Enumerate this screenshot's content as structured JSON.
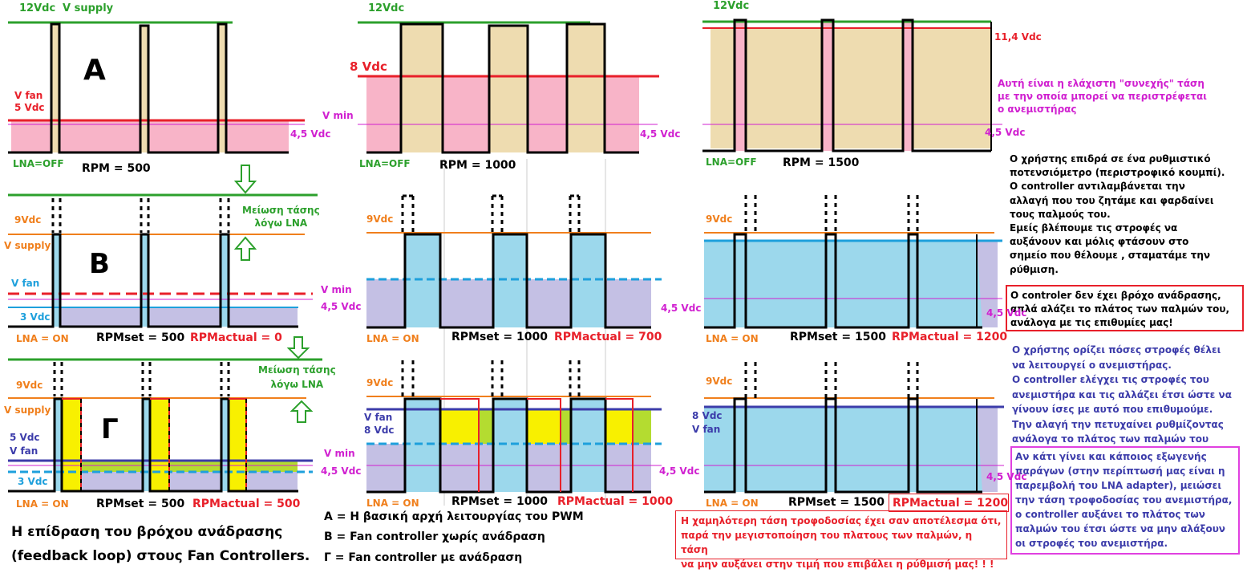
{
  "labels": {
    "v12_a": "12Vdc",
    "vsupply_a": "V supply",
    "v12_b": "12Vdc",
    "v12_c": "12Vdc",
    "vfan_a": "V fan",
    "v5_a": "5 Vdc",
    "v8_b": "8 Vdc",
    "v114_c": "11,4 Vdc",
    "vmin_a": "V min",
    "v45_a": "4,5 Vdc",
    "v45_b": "4,5 Vdc",
    "v45_c": "4,5 Vdc",
    "lna_off_a": "LNA=OFF",
    "lna_off_b": "LNA=OFF",
    "lna_off_c": "LNA=OFF",
    "rpm_500": "RPM = 500",
    "rpm_1000": "RPM = 1000",
    "rpm_1500": "RPM = 1500",
    "letter_a": "A",
    "letter_b": "B",
    "letter_g": "Γ",
    "reduce1": "Μείωση τάσης\nλόγω LNA",
    "reduce2": "Μείωση τάσης\nλόγω  LNA",
    "v9_r2a": "9Vdc",
    "vsupply_r2": "V supply",
    "vfan_r2": "V fan",
    "vmin_r2": "V min",
    "v45_r2a": "4,5 Vdc",
    "v3_r2": "3 Vdc",
    "lna_on_r2a": "LNA = ON",
    "rpmset_500_r2": "RPMset = 500",
    "rpmact_0": "RPMactual = 0",
    "v9_r2b": "9Vdc",
    "v45_r2b": "4,5 Vdc",
    "lna_on_r2b": "LNA = ON",
    "rpmset_1000_r2": "RPMset = 1000",
    "rpmact_700": "RPMactual = 700",
    "v9_r2c": "9Vdc",
    "v45_r2c": "4,5 Vdc",
    "lna_on_r2c": "LNA = ON",
    "rpmset_1500_r2": "RPMset = 1500",
    "rpmact_1200_r2": "RPMactual = 1200",
    "v9_r3a": "9Vdc",
    "vsupply_r3": "V supply",
    "v5_r3": "5 Vdc",
    "vfan_r3a": "V fan",
    "v3_r3": "3 Vdc",
    "vmin_r3": "V min",
    "v45_r3a": "4,5 Vdc",
    "lna_on_r3a": "LNA = ON",
    "rpmset_500_r3": "RPMset = 500",
    "rpmact_500": "RPMactual = 500",
    "v9_r3b": "9Vdc",
    "vfan_r3b": "V fan",
    "v8_r3b": "8 Vdc",
    "v45_r3b": "4,5 Vdc",
    "lna_on_r3b": "LNA = ON",
    "rpmset_1000_r3": "RPMset = 1000",
    "rpmact_1000": "RPMactual = 1000",
    "v9_r3c": "9Vdc",
    "v8_r3c": "8 Vdc",
    "vfan_r3c": "V fan",
    "v45_r3c": "4,5 Vdc",
    "lna_on_r3c": "LNA = ON",
    "rpmset_1500_r3": "RPMset = 1500",
    "rpmact_1200_r3": "RPMactual = 1200"
  },
  "notes": {
    "min_voltage": "Αυτή είναι η ελάχιστη \"συνεχής\" τάση\nμε την οποία μπορεί να περιστρέφεται\n ο ανεμιστήρας",
    "user_pot": "Ο χρήστης επιδρά σε ένα ρυθμιστικό\nποτενσιόμετρο (περιστροφικό κουμπί).\nΟ controller αντιλαμβάνεται την\nαλλαγή που του ζητάμε και φαρδαίνει\nτους παλμούς του.\nΕμείς βλέπουμε τις στροφές να\nαυξάνουν και μόλις φτάσουν στο\nσημείο που θέλουμε , σταματάμε την\nρύθμιση.",
    "no_loop": "Ο controler δεν έχει βρόχο ανάδρασης,\nαπλά αλάζει το πλάτος των παλμών του,\nανάλογα με τις επιθυμίες μας!",
    "user_sets": "Ο χρήστης ορίζει πόσες στροφές θέλει\nνα λειτουργεί ο ανεμιστήρας.\n Ο controller ελέγχει τις στροφές του\n ανεμιστήρα και τις αλλάζει έτσι ώστε να\n γίνουν ίσες με αυτό που επιθυμούμε.\n Την αλαγή την πετυχαίνει ρυθμίζοντας\n ανάλογα το πλάτος των παλμών του",
    "external": "Αν κάτι γίνει και κάποιος εξωγενής\nπαράγων (στην περίπτωσή μας είναι η\nπαρεμβολή του LNA adapter), μειώσει\nτην τάση τροφοδοσίας του ανεμιστήρα,\nο  controller αυξάνει το πλάτος των\nπαλμών του  έτσι ώστε να μην αλάξουν\nοι στροφές του ανεμιστήρα.",
    "low_supply": "Η χαμηλότερη τάση τροφοδοσίας έχει σαν αποτέλεσμα ότι,\nπαρά την μεγιστοποίηση του πλατους των παλμών, η τάση\nνα μην αυξάνει στην τιμή που επιβάλει η ρύθμισή μας! ! !",
    "caption": "Η επίδραση του βρόχου ανάδρασης\n(feedback loop) στους Fan Controllers.",
    "legend_a": "A = Η βασική αρχή λειτουργίας του PWM",
    "legend_b": "B = Fan controller χωρίς ανάδραση",
    "legend_g": "Γ = Fan controller με ανάδραση"
  },
  "colors": {
    "green": "#2ca02c",
    "red": "#e8202a",
    "orange": "#f07f1c",
    "blue": "#1ea0dc",
    "navy": "#3c3caa",
    "magenta": "#d020d0",
    "pink": "#f8b4c8",
    "tan": "#eedcb0",
    "cyan": "#9cd8ec",
    "lavender": "#c4c0e4",
    "yellow": "#f8f000",
    "lime": "#b4dc30"
  }
}
